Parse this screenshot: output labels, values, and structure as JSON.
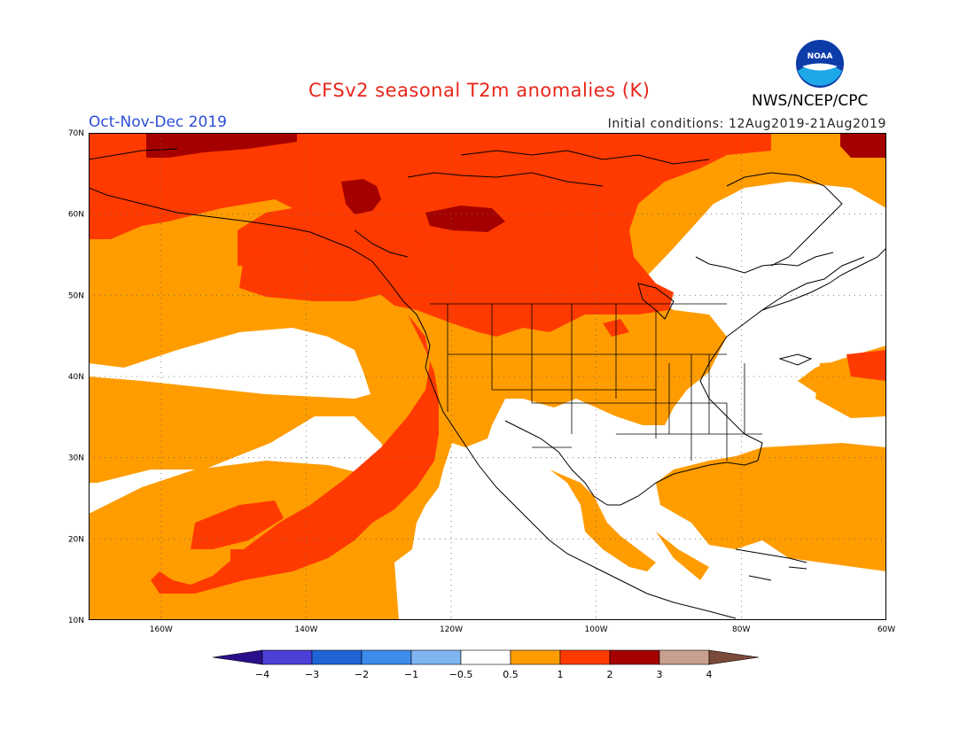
{
  "header": {
    "title": "CFSv2 seasonal T2m anomalies (K)",
    "season": "Oct-Nov-Dec 2019",
    "initial_conditions": "Initial conditions: 12Aug2019-21Aug2019",
    "agency": "NWS/NCEP/CPC",
    "logo_text": "NOAA"
  },
  "map": {
    "lon_range": [
      -170,
      -60
    ],
    "lat_range": [
      10,
      70
    ],
    "lat_labels": [
      "70N",
      "60N",
      "50N",
      "40N",
      "30N",
      "20N",
      "10N"
    ],
    "lon_labels": [
      "160W",
      "140W",
      "120W",
      "100W",
      "80W",
      "60W"
    ],
    "grid": "dotted"
  },
  "colorbar": {
    "colors": [
      "#2a0f8a",
      "#4b3fd6",
      "#1f64d6",
      "#3d8cec",
      "#7fb6f2",
      "#ffffff",
      "#ff9c00",
      "#ff3a00",
      "#a50000",
      "#c8a090",
      "#7a4a3a"
    ],
    "tick_labels": [
      "−4",
      "−3",
      "−2",
      "−1",
      "−0.5",
      "0.5",
      "1",
      "2",
      "3",
      "4"
    ]
  }
}
